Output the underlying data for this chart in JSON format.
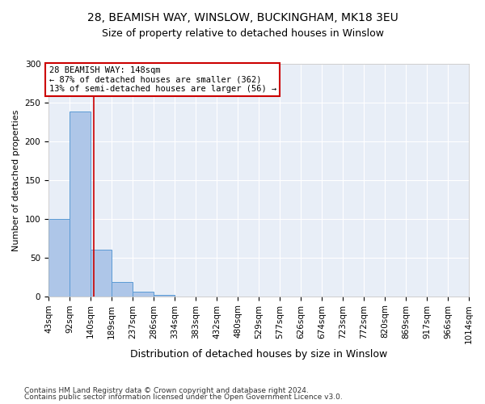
{
  "title1": "28, BEAMISH WAY, WINSLOW, BUCKINGHAM, MK18 3EU",
  "title2": "Size of property relative to detached houses in Winslow",
  "xlabel": "Distribution of detached houses by size in Winslow",
  "ylabel": "Number of detached properties",
  "footnote1": "Contains HM Land Registry data © Crown copyright and database right 2024.",
  "footnote2": "Contains public sector information licensed under the Open Government Licence v3.0.",
  "bin_edges": [
    43,
    92,
    140,
    189,
    237,
    286,
    334,
    383,
    432,
    480,
    529,
    577,
    626,
    674,
    723,
    772,
    820,
    869,
    917,
    966,
    1014
  ],
  "bar_heights": [
    100,
    238,
    60,
    18,
    6,
    2,
    0,
    0,
    0,
    0,
    0,
    0,
    0,
    0,
    0,
    0,
    0,
    0,
    0,
    0
  ],
  "bar_color": "#aec6e8",
  "bar_edge_color": "#5b9bd5",
  "property_size": 148,
  "red_line_color": "#cc0000",
  "annotation_line1": "28 BEAMISH WAY: 148sqm",
  "annotation_line2": "← 87% of detached houses are smaller (362)",
  "annotation_line3": "13% of semi-detached houses are larger (56) →",
  "annotation_box_color": "#ffffff",
  "annotation_box_edge_color": "#cc0000",
  "ylim": [
    0,
    300
  ],
  "yticks": [
    0,
    50,
    100,
    150,
    200,
    250,
    300
  ],
  "background_color": "#e8eef7",
  "grid_color": "#ffffff",
  "fig_background": "#ffffff",
  "title1_fontsize": 10,
  "title2_fontsize": 9,
  "xlabel_fontsize": 9,
  "ylabel_fontsize": 8,
  "tick_fontsize": 7.5,
  "annotation_fontsize": 7.5,
  "footnote_fontsize": 6.5
}
